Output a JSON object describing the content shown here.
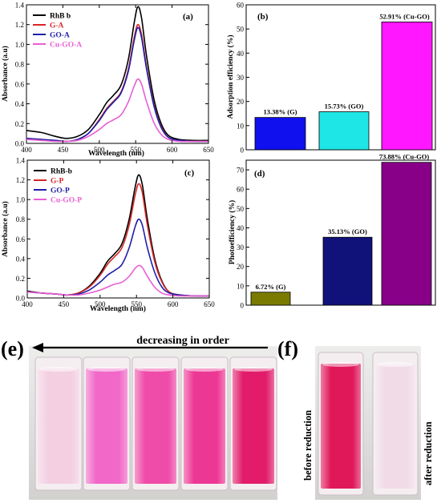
{
  "chart_data": [
    {
      "panel": "(a)",
      "type": "line",
      "xlabel": "Wavelength (nm)",
      "ylabel": "Absorbance (a.u)",
      "xlim": [
        400,
        650
      ],
      "ylim": [
        0.0,
        1.4
      ],
      "xticks": [
        "400",
        "450",
        "500",
        "550",
        "600",
        "650"
      ],
      "yticks": [
        "0.0",
        "0.2",
        "0.4",
        "0.6",
        "0.8",
        "1.0",
        "1.2",
        "1.4"
      ],
      "legend_position": "top-left",
      "series": [
        {
          "name": "RhB b",
          "color": "#000000",
          "x": [
            400,
            420,
            440,
            455,
            470,
            485,
            500,
            510,
            520,
            530,
            540,
            548,
            553,
            558,
            565,
            575,
            585,
            595,
            610,
            630,
            650
          ],
          "y": [
            0.13,
            0.11,
            0.07,
            0.05,
            0.07,
            0.14,
            0.29,
            0.41,
            0.49,
            0.59,
            0.85,
            1.22,
            1.38,
            1.27,
            0.88,
            0.45,
            0.2,
            0.08,
            0.04,
            0.03,
            0.03
          ]
        },
        {
          "name": "G-A",
          "color": "#d62728",
          "x": [
            400,
            420,
            440,
            455,
            470,
            485,
            500,
            510,
            520,
            530,
            540,
            548,
            553,
            558,
            565,
            575,
            585,
            595,
            610,
            630,
            650
          ],
          "y": [
            0.05,
            0.04,
            0.03,
            0.02,
            0.04,
            0.1,
            0.24,
            0.35,
            0.43,
            0.52,
            0.75,
            1.07,
            1.2,
            1.1,
            0.77,
            0.39,
            0.17,
            0.06,
            0.03,
            0.02,
            0.02
          ]
        },
        {
          "name": "GO-A",
          "color": "#1f1fa8",
          "x": [
            400,
            420,
            440,
            455,
            470,
            485,
            500,
            510,
            520,
            530,
            540,
            548,
            553,
            558,
            565,
            575,
            585,
            595,
            610,
            630,
            650
          ],
          "y": [
            0.05,
            0.04,
            0.03,
            0.02,
            0.04,
            0.1,
            0.23,
            0.34,
            0.42,
            0.51,
            0.73,
            1.04,
            1.17,
            1.07,
            0.75,
            0.38,
            0.16,
            0.06,
            0.03,
            0.02,
            0.02
          ]
        },
        {
          "name": "Cu-GO-A",
          "color": "#e85fd3",
          "x": [
            400,
            420,
            440,
            455,
            470,
            485,
            500,
            510,
            520,
            530,
            540,
            548,
            553,
            558,
            565,
            575,
            585,
            595,
            610,
            630,
            650
          ],
          "y": [
            0.04,
            0.03,
            0.02,
            0.02,
            0.03,
            0.07,
            0.14,
            0.2,
            0.24,
            0.29,
            0.42,
            0.58,
            0.65,
            0.6,
            0.42,
            0.21,
            0.09,
            0.04,
            0.02,
            0.02,
            0.02
          ]
        }
      ]
    },
    {
      "panel": "(b)",
      "type": "bar",
      "ylabel": "Adsorption efficiency (%)",
      "ylim": [
        0,
        60
      ],
      "yticks": [
        "0",
        "10",
        "20",
        "30",
        "40",
        "50",
        "60"
      ],
      "categories": [
        "G",
        "GO",
        "Cu-GO"
      ],
      "values": [
        13.38,
        15.73,
        52.91
      ],
      "colors": [
        "#1010ee",
        "#1ee6e6",
        "#ff17ff"
      ],
      "data_labels": [
        "13.38% (G)",
        "15.73% (GO)",
        "52.91% (Cu-GO)"
      ]
    },
    {
      "panel": "(c)",
      "type": "line",
      "xlabel": "Wavelength (nm)",
      "ylabel": "Absorbance (a.u)",
      "xlim": [
        400,
        650
      ],
      "ylim": [
        0.0,
        1.4
      ],
      "xticks": [
        "400",
        "450",
        "500",
        "550",
        "600",
        "650"
      ],
      "yticks": [
        "0.0",
        "0.2",
        "0.4",
        "0.6",
        "0.8",
        "1.0",
        "1.2",
        "1.4"
      ],
      "legend_position": "top-left",
      "series": [
        {
          "name": "RhB-b",
          "color": "#000000",
          "x": [
            400,
            420,
            440,
            455,
            470,
            485,
            500,
            510,
            520,
            530,
            540,
            548,
            553,
            558,
            565,
            575,
            585,
            595,
            610,
            630,
            650
          ],
          "y": [
            0.07,
            0.05,
            0.04,
            0.03,
            0.05,
            0.12,
            0.25,
            0.37,
            0.45,
            0.55,
            0.8,
            1.12,
            1.25,
            1.15,
            0.8,
            0.4,
            0.17,
            0.06,
            0.03,
            0.02,
            0.02
          ]
        },
        {
          "name": "G-P",
          "color": "#d62728",
          "x": [
            400,
            420,
            440,
            455,
            470,
            485,
            500,
            510,
            520,
            530,
            540,
            548,
            553,
            558,
            565,
            575,
            585,
            595,
            610,
            630,
            650
          ],
          "y": [
            0.06,
            0.05,
            0.04,
            0.03,
            0.05,
            0.11,
            0.23,
            0.34,
            0.42,
            0.51,
            0.74,
            1.04,
            1.16,
            1.07,
            0.74,
            0.37,
            0.16,
            0.06,
            0.03,
            0.02,
            0.02
          ]
        },
        {
          "name": "GO-P",
          "color": "#1f1fa8",
          "x": [
            400,
            420,
            440,
            455,
            470,
            485,
            500,
            510,
            520,
            530,
            540,
            548,
            553,
            558,
            565,
            575,
            585,
            595,
            610,
            630,
            650
          ],
          "y": [
            0.06,
            0.05,
            0.04,
            0.03,
            0.04,
            0.08,
            0.16,
            0.23,
            0.28,
            0.34,
            0.51,
            0.72,
            0.8,
            0.74,
            0.51,
            0.26,
            0.11,
            0.05,
            0.03,
            0.02,
            0.02
          ]
        },
        {
          "name": "Cu-GO-P",
          "color": "#e85fd3",
          "x": [
            400,
            420,
            440,
            455,
            470,
            485,
            500,
            510,
            520,
            530,
            540,
            548,
            553,
            558,
            565,
            575,
            585,
            595,
            610,
            630,
            650
          ],
          "y": [
            0.06,
            0.05,
            0.04,
            0.03,
            0.03,
            0.05,
            0.08,
            0.11,
            0.14,
            0.16,
            0.22,
            0.3,
            0.33,
            0.31,
            0.22,
            0.11,
            0.05,
            0.03,
            0.02,
            0.02,
            0.02
          ]
        }
      ]
    },
    {
      "panel": "(d)",
      "type": "bar",
      "ylabel": "Photoefficiency (%)",
      "ylim": [
        0,
        75
      ],
      "yticks": [
        "0",
        "10",
        "20",
        "30",
        "40",
        "50",
        "60",
        "70"
      ],
      "categories": [
        "G",
        "GO",
        "Cu-GO"
      ],
      "values": [
        6.72,
        35.13,
        73.88
      ],
      "colors": [
        "#7a7a00",
        "#11117a",
        "#880088"
      ],
      "data_labels": [
        "6.72% (G)",
        "35.13% (GO)",
        "73.88% (Cu-GO)"
      ]
    }
  ],
  "photos": {
    "e": {
      "label": "(e)",
      "arrow_text": "decreasing in order",
      "vial_colors": [
        "#f3cfe1",
        "#f168c8",
        "#ef4ba8",
        "#ed3794",
        "#e21c6a"
      ]
    },
    "f": {
      "label": "(f)",
      "before_text": "before reduction",
      "after_text": "after reduction",
      "vial_colors": [
        "#e0185a",
        "#f1dbe6"
      ]
    }
  }
}
